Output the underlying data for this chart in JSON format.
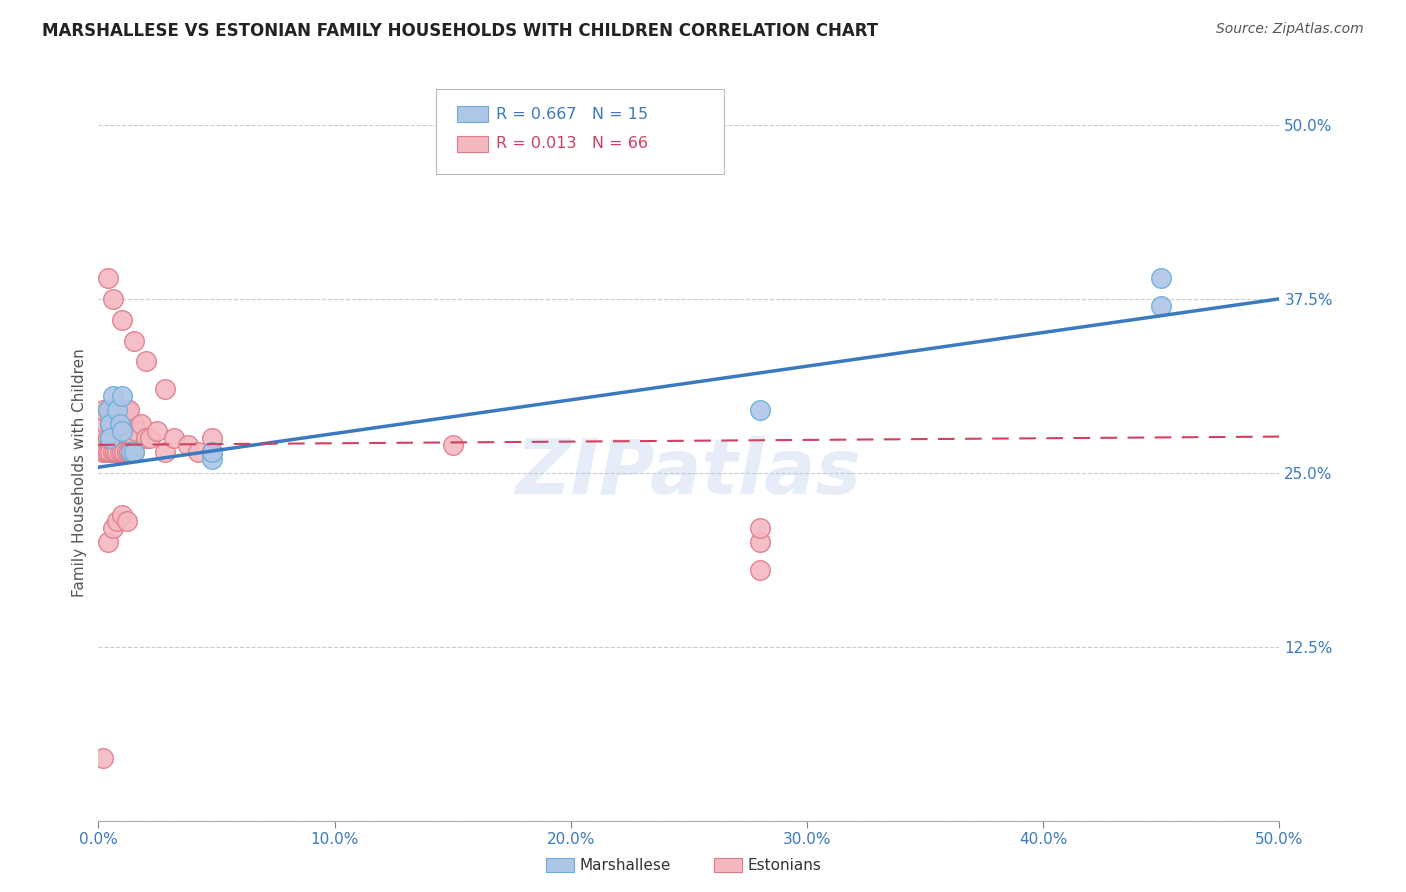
{
  "title": "MARSHALLESE VS ESTONIAN FAMILY HOUSEHOLDS WITH CHILDREN CORRELATION CHART",
  "source": "Source: ZipAtlas.com",
  "ylabel": "Family Households with Children",
  "xlim": [
    0.0,
    0.5
  ],
  "ylim": [
    0.0,
    0.5
  ],
  "ytick_vals": [
    0.0,
    0.125,
    0.25,
    0.375,
    0.5
  ],
  "xtick_vals": [
    0.0,
    0.1,
    0.2,
    0.3,
    0.4,
    0.5
  ],
  "grid_color": "#cccccc",
  "marshallese_color": "#aec6e8",
  "estonian_color": "#f4b8c1",
  "marshallese_edge": "#6aaed6",
  "estonian_edge": "#e07b8a",
  "trend_marshallese_color": "#3a7abf",
  "trend_estonian_color": "#d04060",
  "legend_R_marshallese": "R = 0.667",
  "legend_N_marshallese": "N = 15",
  "legend_R_estonian": "R = 0.013",
  "legend_N_estonian": "N = 66",
  "watermark": "ZIPatlas",
  "marshallese_x": [
    0.004,
    0.005,
    0.005,
    0.006,
    0.008,
    0.009,
    0.01,
    0.01,
    0.014,
    0.015,
    0.048,
    0.048,
    0.28,
    0.45,
    0.45
  ],
  "marshallese_y": [
    0.295,
    0.285,
    0.275,
    0.305,
    0.295,
    0.285,
    0.305,
    0.28,
    0.265,
    0.265,
    0.26,
    0.265,
    0.295,
    0.39,
    0.37
  ],
  "estonian_x": [
    0.002,
    0.003,
    0.004,
    0.005,
    0.006,
    0.007,
    0.008,
    0.009,
    0.01,
    0.011,
    0.012,
    0.013,
    0.014,
    0.015,
    0.002,
    0.003,
    0.004,
    0.005,
    0.006,
    0.007,
    0.008,
    0.009,
    0.01,
    0.011,
    0.012,
    0.013,
    0.014,
    0.015,
    0.002,
    0.004,
    0.005,
    0.006,
    0.007,
    0.008,
    0.009,
    0.01,
    0.011,
    0.012,
    0.013,
    0.016,
    0.018,
    0.02,
    0.022,
    0.025,
    0.028,
    0.032,
    0.038,
    0.042,
    0.002,
    0.004,
    0.006,
    0.008,
    0.01,
    0.012,
    0.004,
    0.006,
    0.01,
    0.015,
    0.02,
    0.028,
    0.048,
    0.048,
    0.15,
    0.28,
    0.28,
    0.28
  ],
  "estonian_y": [
    0.275,
    0.285,
    0.275,
    0.285,
    0.275,
    0.285,
    0.275,
    0.28,
    0.285,
    0.275,
    0.285,
    0.28,
    0.275,
    0.285,
    0.265,
    0.265,
    0.265,
    0.265,
    0.265,
    0.265,
    0.265,
    0.265,
    0.265,
    0.265,
    0.265,
    0.265,
    0.265,
    0.265,
    0.295,
    0.295,
    0.295,
    0.295,
    0.295,
    0.295,
    0.295,
    0.295,
    0.295,
    0.295,
    0.295,
    0.28,
    0.285,
    0.275,
    0.275,
    0.28,
    0.265,
    0.275,
    0.27,
    0.265,
    0.045,
    0.2,
    0.21,
    0.215,
    0.22,
    0.215,
    0.39,
    0.375,
    0.36,
    0.345,
    0.33,
    0.31,
    0.265,
    0.275,
    0.27,
    0.2,
    0.21,
    0.18
  ],
  "trend_m_x0": 0.0,
  "trend_m_y0": 0.254,
  "trend_m_x1": 0.5,
  "trend_m_y1": 0.375,
  "trend_e_x0": 0.0,
  "trend_e_y0": 0.27,
  "trend_e_x1": 0.5,
  "trend_e_y1": 0.276
}
